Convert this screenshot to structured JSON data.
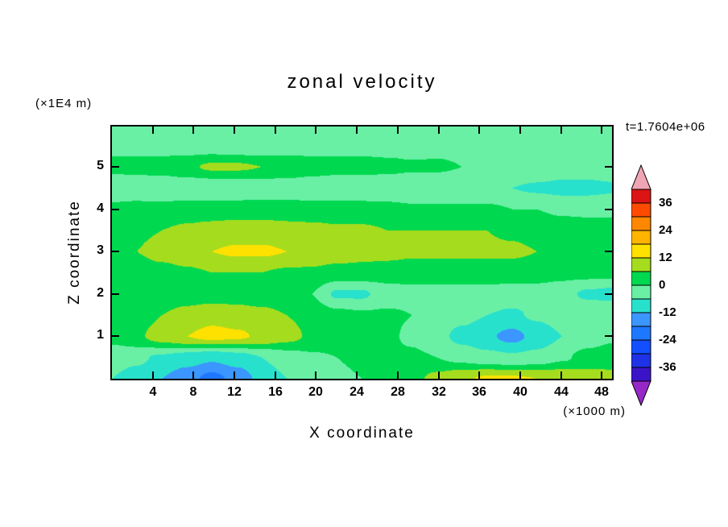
{
  "chart_data": {
    "type": "contour",
    "title": "zonal velocity",
    "annotation": "t=1.7604e+06",
    "xlabel": "X coordinate",
    "x_unit": "(×1000 m)",
    "ylabel": "Z coordinate",
    "y_unit": "(×1E4 m)",
    "xlim": [
      0,
      49
    ],
    "zlim": [
      0,
      5.95
    ],
    "xticks": [
      4,
      8,
      12,
      16,
      20,
      24,
      28,
      32,
      36,
      40,
      44,
      48
    ],
    "yticks": [
      1,
      2,
      3,
      4,
      5
    ],
    "grid": false,
    "colorbar": {
      "labels": [
        36,
        24,
        12,
        0,
        -12,
        -24,
        -36
      ],
      "band_min": -42,
      "band_step": 6,
      "band_colors_low_to_high": [
        "#3c14c8",
        "#1e32e6",
        "#144fff",
        "#1e78ff",
        "#3c96ff",
        "#28e1cd",
        "#69f0a5",
        "#00d850",
        "#a5dc1e",
        "#ffe100",
        "#ffb400",
        "#ff8700",
        "#ff4b00",
        "#dc1414"
      ],
      "arrow_low_color": "#9628c8",
      "arrow_high_color": "#f0a5b4"
    },
    "field": {
      "x": [
        0,
        2.45,
        4.9,
        7.35,
        9.8,
        12.25,
        14.7,
        17.15,
        19.6,
        22.05,
        24.5,
        26.95,
        29.4,
        31.85,
        34.3,
        36.75,
        39.2,
        41.65,
        44.1,
        46.55,
        49
      ],
      "z": [
        0,
        0.5,
        1,
        1.5,
        2,
        2.5,
        3,
        3.5,
        4,
        4.5,
        5,
        5.5,
        5.95
      ],
      "values": [
        [
          -6,
          -8,
          -12,
          -16,
          -20,
          -16,
          -10,
          -6,
          -3,
          -1,
          0,
          1,
          4,
          8,
          11,
          13,
          13,
          12,
          11,
          9,
          8
        ],
        [
          -4,
          -5,
          -7,
          -9,
          -11,
          -9,
          -6,
          -3,
          -1,
          0,
          1,
          1,
          1,
          0,
          -2,
          -4,
          -5,
          -4,
          -1,
          2,
          3
        ],
        [
          2,
          5,
          9,
          12,
          14,
          13,
          11,
          8,
          5,
          3,
          2,
          1,
          -1,
          -4,
          -8,
          -11,
          -14,
          -10,
          -6,
          -3,
          -1
        ],
        [
          1,
          3,
          6,
          8,
          10,
          9,
          8,
          6,
          4,
          2,
          1,
          1,
          0,
          -2,
          -4,
          -6,
          -7,
          -5,
          -3,
          -1,
          0
        ],
        [
          0,
          1,
          2,
          3,
          3,
          3,
          2,
          1,
          0,
          -7,
          -7,
          -3,
          -2,
          -2,
          -2,
          -2,
          -3,
          -3,
          -4,
          -7,
          -8
        ],
        [
          2,
          3,
          4,
          5,
          6,
          6,
          6,
          5,
          5,
          4,
          4,
          3,
          3,
          3,
          3,
          3,
          3,
          3,
          2,
          2,
          2
        ],
        [
          4,
          6,
          8,
          10,
          12,
          13,
          13,
          12,
          10,
          9,
          8,
          8,
          7,
          7,
          7,
          7,
          7,
          6,
          5,
          4,
          3
        ],
        [
          3,
          5,
          6,
          7,
          8,
          9,
          9,
          8,
          8,
          7,
          7,
          6,
          6,
          6,
          6,
          6,
          5,
          4,
          3,
          2,
          2
        ],
        [
          1,
          2,
          2,
          3,
          3,
          3,
          3,
          3,
          2,
          2,
          2,
          2,
          1,
          1,
          1,
          1,
          0,
          0,
          -1,
          -1,
          -1
        ],
        [
          -3,
          -4,
          -5,
          -5,
          -5,
          -5,
          -4,
          -4,
          -4,
          -4,
          -4,
          -5,
          -5,
          -5,
          -5,
          -5,
          -6,
          -7,
          -8,
          -8,
          -7
        ],
        [
          1,
          2,
          3,
          5,
          7,
          7,
          6,
          5,
          3,
          2,
          2,
          2,
          1,
          1,
          0,
          0,
          -1,
          -1,
          -2,
          -2,
          -2
        ],
        [
          -1,
          -2,
          -3,
          -4,
          -4,
          -5,
          -5,
          -4,
          -3,
          -2,
          -2,
          -3,
          -3,
          -2,
          -2,
          -3,
          -4,
          -5,
          -6,
          -6,
          -5
        ],
        [
          -2,
          -3,
          -4,
          -5,
          -5,
          -5,
          -4,
          -3,
          -2,
          -2,
          -2,
          -3,
          -3,
          -3,
          -3,
          -4,
          -5,
          -6,
          -6,
          -5,
          -4
        ]
      ]
    }
  }
}
